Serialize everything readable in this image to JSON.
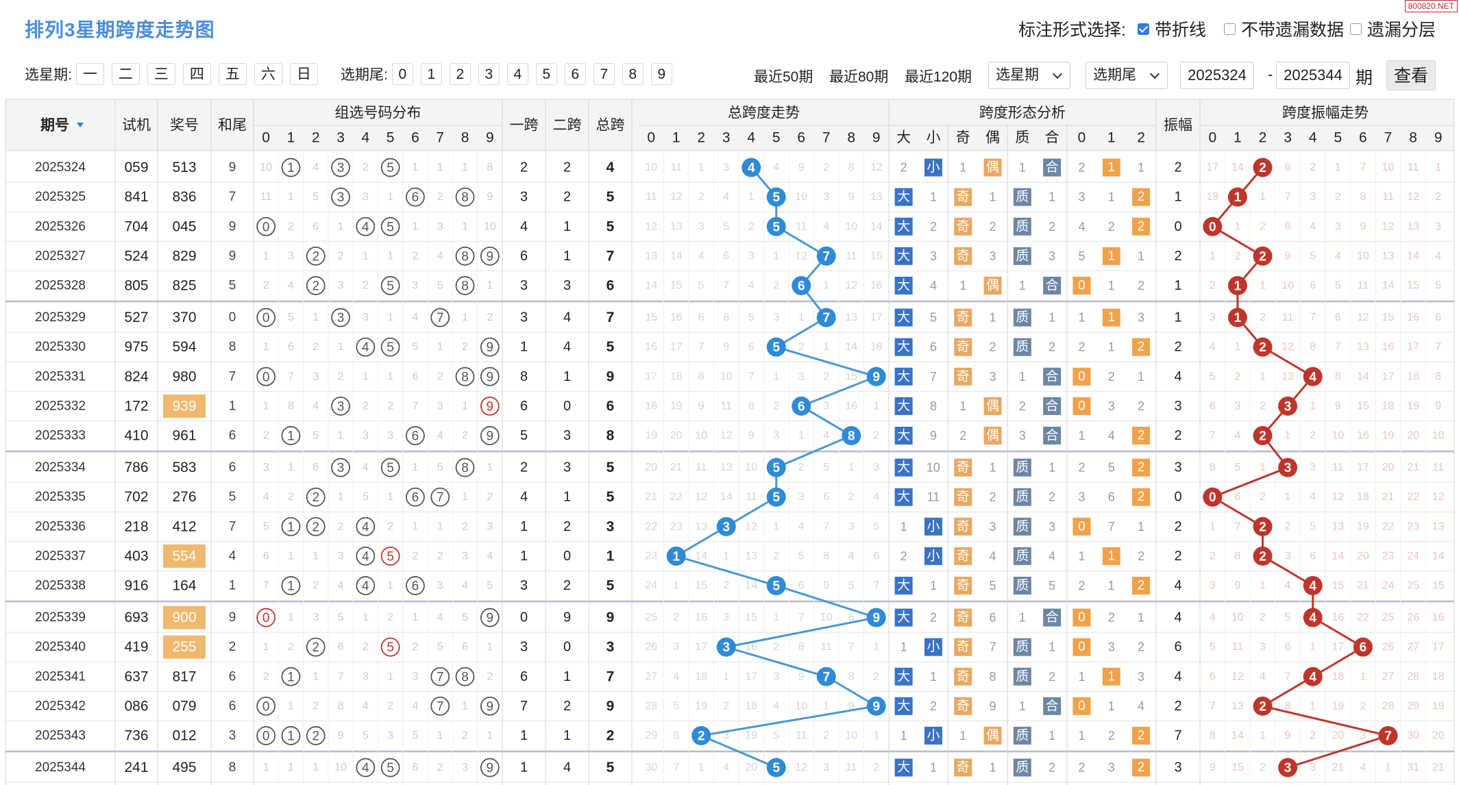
{
  "title": "排列3星期跨度走势图",
  "brand": "800820.NET",
  "mark_options": {
    "label": "标注形式选择:",
    "items": [
      {
        "label": "带折线",
        "checked": true
      },
      {
        "label": "不带遗漏数据",
        "checked": false
      },
      {
        "label": "遗漏分层",
        "checked": false
      }
    ]
  },
  "week_filter": {
    "label": "选星期:",
    "options": [
      "一",
      "二",
      "三",
      "四",
      "五",
      "六",
      "日"
    ]
  },
  "tail_filter": {
    "label": "选期尾:",
    "options": [
      "0",
      "1",
      "2",
      "3",
      "4",
      "5",
      "6",
      "7",
      "8",
      "9"
    ]
  },
  "range_links": [
    "最近50期",
    "最近80期",
    "最近120期"
  ],
  "selects": {
    "week": "选星期",
    "tail": "选期尾"
  },
  "period_inputs": {
    "from": "2025324",
    "dash": "-",
    "to": "2025344",
    "suffix": "期"
  },
  "query_button": "查看",
  "table_headers": {
    "period": "期号",
    "trial": "试机",
    "prize": "奖号",
    "sum_tail": "和尾",
    "group_dist": "组选号码分布",
    "span1": "一跨",
    "span2": "二跨",
    "total_span": "总跨",
    "span_trend": "总跨度走势",
    "shape": "跨度形态分析",
    "amp": "振幅",
    "amp_trend": "跨度振幅走势",
    "digits": [
      "0",
      "1",
      "2",
      "3",
      "4",
      "5",
      "6",
      "7",
      "8",
      "9"
    ],
    "shape_cols": [
      "大",
      "小",
      "奇",
      "偶",
      "质",
      "合",
      "0",
      "1",
      "2"
    ]
  },
  "chart_data": {
    "type": "table",
    "rows": [
      {
        "period": "2025324",
        "trial": "059",
        "prize": "513",
        "hot": false,
        "sum_tail": 9,
        "span1": 2,
        "span2": 2,
        "span": 4,
        "amp": 2
      },
      {
        "period": "2025325",
        "trial": "841",
        "prize": "836",
        "hot": false,
        "sum_tail": 7,
        "span1": 3,
        "span2": 2,
        "span": 5,
        "amp": 1
      },
      {
        "period": "2025326",
        "trial": "704",
        "prize": "045",
        "hot": false,
        "sum_tail": 9,
        "span1": 4,
        "span2": 1,
        "span": 5,
        "amp": 0
      },
      {
        "period": "2025327",
        "trial": "524",
        "prize": "829",
        "hot": false,
        "sum_tail": 9,
        "span1": 6,
        "span2": 1,
        "span": 7,
        "amp": 2
      },
      {
        "period": "2025328",
        "trial": "805",
        "prize": "825",
        "hot": false,
        "sum_tail": 5,
        "span1": 3,
        "span2": 3,
        "span": 6,
        "amp": 1
      },
      {
        "period": "2025329",
        "trial": "527",
        "prize": "370",
        "hot": false,
        "sum_tail": 0,
        "span1": 3,
        "span2": 4,
        "span": 7,
        "amp": 1
      },
      {
        "period": "2025330",
        "trial": "975",
        "prize": "594",
        "hot": false,
        "sum_tail": 8,
        "span1": 1,
        "span2": 4,
        "span": 5,
        "amp": 2
      },
      {
        "period": "2025331",
        "trial": "824",
        "prize": "980",
        "hot": false,
        "sum_tail": 7,
        "span1": 8,
        "span2": 1,
        "span": 9,
        "amp": 4
      },
      {
        "period": "2025332",
        "trial": "172",
        "prize": "939",
        "hot": true,
        "sum_tail": 1,
        "span1": 6,
        "span2": 0,
        "span": 6,
        "amp": 3
      },
      {
        "period": "2025333",
        "trial": "410",
        "prize": "961",
        "hot": false,
        "sum_tail": 6,
        "span1": 5,
        "span2": 3,
        "span": 8,
        "amp": 2
      },
      {
        "period": "2025334",
        "trial": "786",
        "prize": "583",
        "hot": false,
        "sum_tail": 6,
        "span1": 2,
        "span2": 3,
        "span": 5,
        "amp": 3
      },
      {
        "period": "2025335",
        "trial": "702",
        "prize": "276",
        "hot": false,
        "sum_tail": 5,
        "span1": 4,
        "span2": 1,
        "span": 5,
        "amp": 0
      },
      {
        "period": "2025336",
        "trial": "218",
        "prize": "412",
        "hot": false,
        "sum_tail": 7,
        "span1": 1,
        "span2": 2,
        "span": 3,
        "amp": 2
      },
      {
        "period": "2025337",
        "trial": "403",
        "prize": "554",
        "hot": true,
        "sum_tail": 4,
        "span1": 1,
        "span2": 0,
        "span": 1,
        "amp": 2
      },
      {
        "period": "2025338",
        "trial": "916",
        "prize": "164",
        "hot": false,
        "sum_tail": 1,
        "span1": 3,
        "span2": 2,
        "span": 5,
        "amp": 4
      },
      {
        "period": "2025339",
        "trial": "693",
        "prize": "900",
        "hot": true,
        "sum_tail": 9,
        "span1": 0,
        "span2": 9,
        "span": 9,
        "amp": 4
      },
      {
        "period": "2025340",
        "trial": "419",
        "prize": "255",
        "hot": true,
        "sum_tail": 2,
        "span1": 3,
        "span2": 0,
        "span": 3,
        "amp": 6
      },
      {
        "period": "2025341",
        "trial": "637",
        "prize": "817",
        "hot": false,
        "sum_tail": 6,
        "span1": 6,
        "span2": 1,
        "span": 7,
        "amp": 4
      },
      {
        "period": "2025342",
        "trial": "086",
        "prize": "079",
        "hot": false,
        "sum_tail": 6,
        "span1": 7,
        "span2": 2,
        "span": 9,
        "amp": 2
      },
      {
        "period": "2025343",
        "trial": "736",
        "prize": "012",
        "hot": false,
        "sum_tail": 3,
        "span1": 1,
        "span2": 1,
        "span": 2,
        "amp": 7
      },
      {
        "period": "2025344",
        "trial": "241",
        "prize": "495",
        "hot": false,
        "sum_tail": 8,
        "span1": 1,
        "span2": 4,
        "span": 5,
        "amp": 3
      }
    ],
    "group_misses": [
      [
        10,
        "H",
        4,
        "H",
        2,
        "H",
        1,
        1,
        1,
        8
      ],
      [
        11,
        1,
        5,
        "H",
        3,
        1,
        "H",
        2,
        "H",
        9
      ],
      [
        "H",
        2,
        6,
        1,
        "H",
        "H",
        1,
        3,
        1,
        10
      ],
      [
        1,
        3,
        "H",
        2,
        1,
        1,
        2,
        4,
        "H",
        "H"
      ],
      [
        2,
        4,
        "H",
        3,
        2,
        "H",
        3,
        5,
        "H",
        1
      ],
      [
        "H",
        5,
        1,
        "H",
        3,
        1,
        4,
        "H",
        1,
        2
      ],
      [
        1,
        6,
        2,
        1,
        "H",
        "H",
        5,
        1,
        2,
        "H"
      ],
      [
        "H",
        7,
        3,
        2,
        1,
        1,
        6,
        2,
        "H",
        "H"
      ],
      [
        1,
        8,
        4,
        "H",
        2,
        2,
        7,
        3,
        1,
        "D"
      ],
      [
        2,
        "H",
        5,
        1,
        3,
        3,
        "H",
        4,
        2,
        "H"
      ],
      [
        3,
        1,
        6,
        "H",
        4,
        "H",
        1,
        5,
        "H",
        1
      ],
      [
        4,
        2,
        "H",
        1,
        5,
        1,
        "H",
        "H",
        1,
        2
      ],
      [
        5,
        "H",
        "H",
        2,
        "H",
        2,
        1,
        1,
        2,
        3
      ],
      [
        6,
        1,
        1,
        3,
        "H",
        "D",
        2,
        2,
        3,
        4
      ],
      [
        7,
        "H",
        2,
        4,
        "H",
        1,
        "H",
        3,
        4,
        5
      ],
      [
        "D",
        1,
        3,
        5,
        1,
        2,
        1,
        4,
        5,
        "H"
      ],
      [
        1,
        2,
        "H",
        6,
        2,
        "D",
        2,
        5,
        6,
        1
      ],
      [
        2,
        "H",
        1,
        7,
        3,
        1,
        3,
        "H",
        "H",
        2
      ],
      [
        "H",
        1,
        2,
        8,
        4,
        2,
        4,
        "H",
        1,
        "H"
      ],
      [
        "H",
        "H",
        "H",
        9,
        5,
        3,
        5,
        1,
        2,
        1
      ],
      [
        1,
        1,
        1,
        10,
        "H",
        "H",
        6,
        2,
        3,
        "H"
      ]
    ],
    "span_misses": [
      [
        10,
        11,
        1,
        3,
        "H",
        4,
        9,
        2,
        8,
        12
      ],
      [
        11,
        12,
        2,
        4,
        1,
        "H",
        10,
        3,
        9,
        13
      ],
      [
        12,
        13,
        3,
        5,
        2,
        "H",
        11,
        4,
        10,
        14
      ],
      [
        13,
        14,
        4,
        6,
        3,
        1,
        12,
        "H",
        11,
        15
      ],
      [
        14,
        15,
        5,
        7,
        4,
        2,
        "H",
        1,
        12,
        16
      ],
      [
        15,
        16,
        6,
        8,
        5,
        3,
        1,
        "H",
        13,
        17
      ],
      [
        16,
        17,
        7,
        9,
        6,
        "H",
        2,
        1,
        14,
        18
      ],
      [
        17,
        18,
        8,
        10,
        7,
        1,
        3,
        2,
        15,
        "H"
      ],
      [
        18,
        19,
        9,
        11,
        8,
        2,
        "H",
        3,
        16,
        1
      ],
      [
        19,
        20,
        10,
        12,
        9,
        3,
        1,
        4,
        "H",
        2
      ],
      [
        20,
        21,
        11,
        13,
        10,
        "H",
        2,
        5,
        1,
        3
      ],
      [
        21,
        22,
        12,
        14,
        11,
        "H",
        3,
        6,
        2,
        4
      ],
      [
        22,
        23,
        13,
        "H",
        12,
        1,
        4,
        7,
        3,
        5
      ],
      [
        23,
        "H",
        14,
        1,
        13,
        2,
        5,
        8,
        4,
        6
      ],
      [
        24,
        1,
        15,
        2,
        14,
        "H",
        6,
        9,
        5,
        7
      ],
      [
        25,
        2,
        16,
        3,
        15,
        1,
        7,
        10,
        6,
        "H"
      ],
      [
        26,
        3,
        17,
        "H",
        16,
        2,
        8,
        11,
        7,
        1
      ],
      [
        27,
        4,
        18,
        1,
        17,
        3,
        9,
        "H",
        8,
        2
      ],
      [
        28,
        5,
        19,
        2,
        18,
        4,
        10,
        1,
        9,
        "H"
      ],
      [
        29,
        6,
        "H",
        3,
        19,
        5,
        11,
        2,
        10,
        1
      ],
      [
        30,
        7,
        1,
        4,
        20,
        "H",
        12,
        3,
        11,
        2
      ]
    ],
    "shape_misses": [
      [
        2,
        "H",
        1,
        "H",
        1,
        "H",
        2,
        "H",
        1
      ],
      [
        "H",
        1,
        "H",
        1,
        "H",
        1,
        3,
        1,
        "H"
      ],
      [
        "H",
        2,
        "H",
        2,
        "H",
        2,
        4,
        2,
        "H"
      ],
      [
        "H",
        3,
        "H",
        3,
        "H",
        3,
        5,
        "H",
        1
      ],
      [
        "H",
        4,
        1,
        "H",
        1,
        "H",
        "H",
        1,
        2
      ],
      [
        "H",
        5,
        "H",
        1,
        "H",
        1,
        1,
        "H",
        3
      ],
      [
        "H",
        6,
        "H",
        2,
        "H",
        2,
        2,
        1,
        "H"
      ],
      [
        "H",
        7,
        "H",
        3,
        1,
        "H",
        "H",
        2,
        1
      ],
      [
        "H",
        8,
        1,
        "H",
        2,
        "H",
        "H",
        3,
        2
      ],
      [
        "H",
        9,
        2,
        "H",
        3,
        "H",
        1,
        4,
        "H"
      ],
      [
        "H",
        10,
        "H",
        1,
        "H",
        1,
        2,
        5,
        "H"
      ],
      [
        "H",
        11,
        "H",
        2,
        "H",
        2,
        3,
        6,
        "H"
      ],
      [
        1,
        "H",
        "H",
        3,
        "H",
        3,
        "H",
        7,
        1
      ],
      [
        2,
        "H",
        "H",
        4,
        "H",
        4,
        1,
        "H",
        2
      ],
      [
        "H",
        1,
        "H",
        5,
        "H",
        5,
        2,
        1,
        "H"
      ],
      [
        "H",
        2,
        "H",
        6,
        1,
        "H",
        "H",
        2,
        1
      ],
      [
        1,
        "H",
        "H",
        7,
        "H",
        1,
        "H",
        3,
        2
      ],
      [
        "H",
        1,
        "H",
        8,
        "H",
        2,
        1,
        "H",
        3
      ],
      [
        "H",
        2,
        "H",
        9,
        1,
        "H",
        "H",
        1,
        4
      ],
      [
        1,
        "H",
        1,
        "H",
        "H",
        1,
        1,
        2,
        "H"
      ],
      [
        "H",
        1,
        "H",
        1,
        "H",
        2,
        2,
        3,
        "H"
      ]
    ],
    "amp_misses": [
      [
        17,
        14,
        "H",
        6,
        2,
        1,
        7,
        10,
        11,
        1
      ],
      [
        18,
        "H",
        1,
        7,
        3,
        2,
        8,
        11,
        12,
        2
      ],
      [
        "H",
        1,
        2,
        8,
        4,
        3,
        9,
        12,
        13,
        3
      ],
      [
        1,
        2,
        "H",
        9,
        5,
        4,
        10,
        13,
        14,
        4
      ],
      [
        2,
        "H",
        1,
        10,
        6,
        5,
        11,
        14,
        15,
        5
      ],
      [
        3,
        "H",
        2,
        11,
        7,
        6,
        12,
        15,
        16,
        6
      ],
      [
        4,
        1,
        "H",
        12,
        8,
        7,
        13,
        16,
        17,
        7
      ],
      [
        5,
        2,
        1,
        13,
        "H",
        8,
        14,
        17,
        18,
        8
      ],
      [
        6,
        3,
        2,
        "H",
        1,
        9,
        15,
        18,
        19,
        9
      ],
      [
        7,
        4,
        "H",
        1,
        2,
        10,
        16,
        19,
        20,
        10
      ],
      [
        8,
        5,
        1,
        "H",
        3,
        11,
        17,
        20,
        21,
        11
      ],
      [
        "H",
        6,
        2,
        1,
        4,
        12,
        18,
        21,
        22,
        12
      ],
      [
        1,
        7,
        "H",
        2,
        5,
        13,
        19,
        22,
        23,
        13
      ],
      [
        2,
        8,
        "H",
        3,
        6,
        14,
        20,
        23,
        24,
        14
      ],
      [
        3,
        9,
        1,
        4,
        "H",
        15,
        21,
        24,
        25,
        15
      ],
      [
        4,
        10,
        2,
        5,
        "H",
        16,
        22,
        25,
        26,
        16
      ],
      [
        5,
        11,
        3,
        6,
        1,
        17,
        "H",
        26,
        27,
        17
      ],
      [
        6,
        12,
        4,
        7,
        "H",
        18,
        1,
        27,
        28,
        18
      ],
      [
        7,
        13,
        "H",
        8,
        1,
        19,
        2,
        28,
        29,
        19
      ],
      [
        8,
        14,
        1,
        9,
        2,
        20,
        3,
        "H",
        30,
        20
      ],
      [
        9,
        15,
        2,
        "H",
        3,
        21,
        4,
        1,
        31,
        21
      ]
    ]
  }
}
